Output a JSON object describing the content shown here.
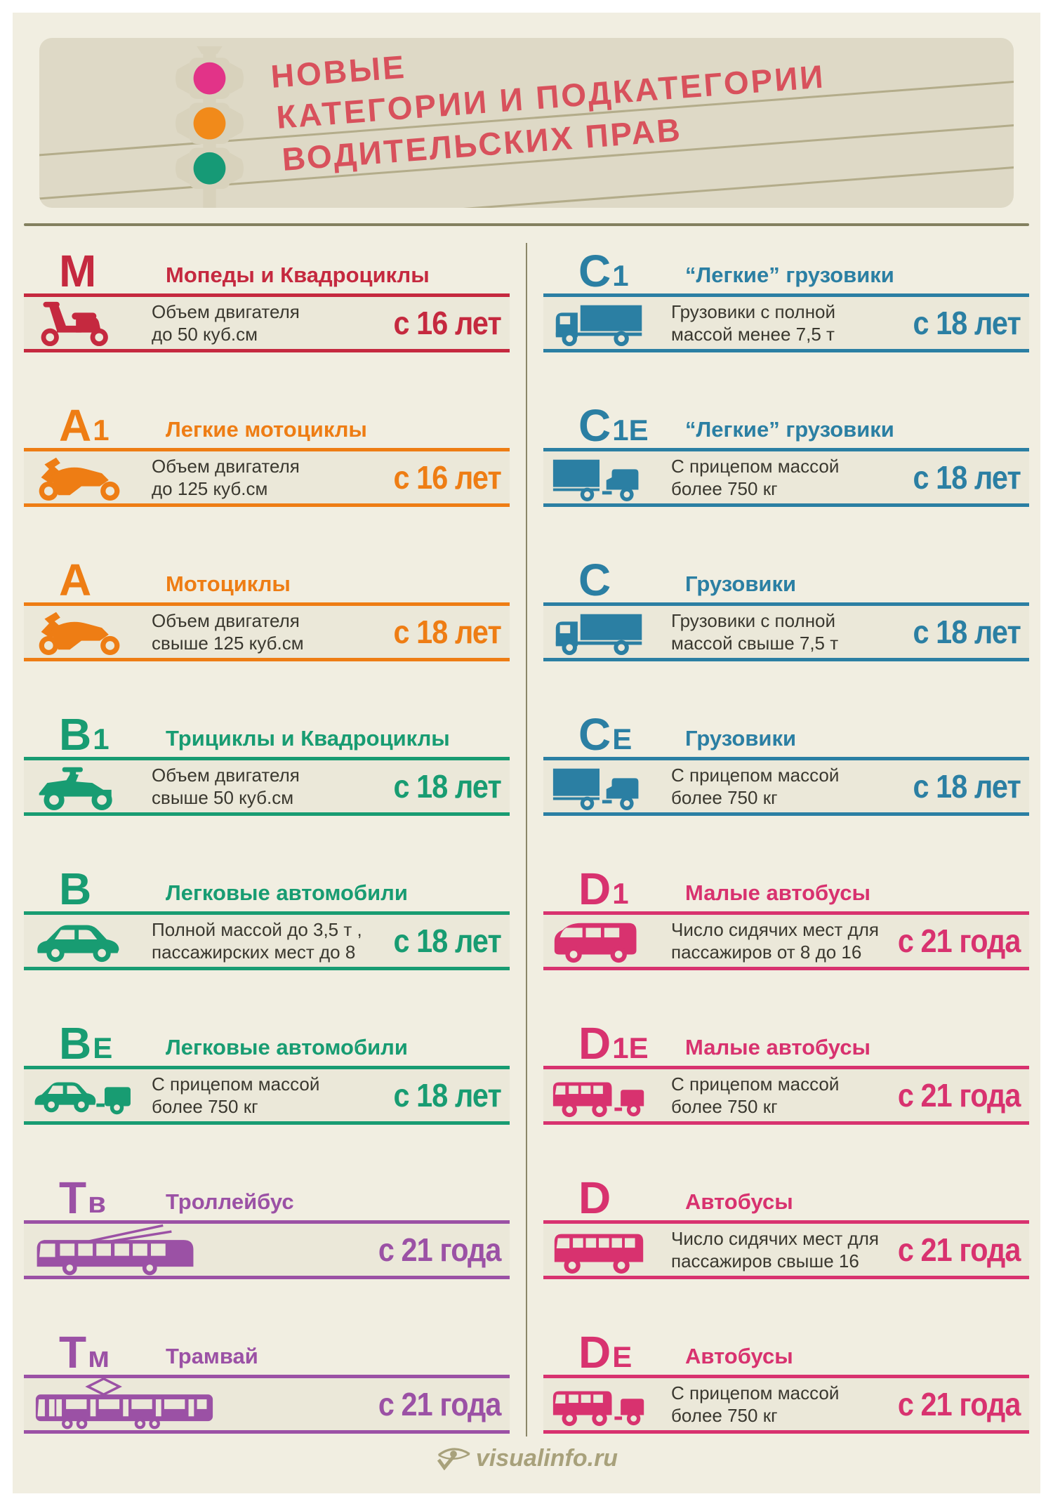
{
  "header": {
    "title_lines": [
      "Новые",
      "категории и подкатегории",
      "водительских прав"
    ]
  },
  "traffic_light": {
    "lights": [
      "#e23388",
      "#f18a1a",
      "#169a76"
    ]
  },
  "footer": {
    "site": "visualinfo.ru"
  },
  "colors": {
    "page_bg": "#f1eee1",
    "header_bg": "#ded9c6",
    "band_bg": "#ebe8d9",
    "rule_olive": "#83805f",
    "wire_olive": "#b3ac8a",
    "desc_text": "#3a382f",
    "header_title_red": "#d8515c",
    "footer_olive": "#a8a17b",
    "category_red": "#c5293f",
    "category_orange": "#ee7d14",
    "category_green": "#189c72",
    "category_purple": "#9b51a5",
    "category_blue": "#2b7fa3",
    "category_pink": "#d8326f"
  },
  "columns": {
    "left": [
      {
        "code": {
          "main": "M",
          "sub": ""
        },
        "title": "Мопеды и Квадроциклы",
        "desc_lines": [
          "Объем двигателя",
          "до 50 куб.см"
        ],
        "age": "с 16 лет",
        "color": "#c5293f",
        "icon": "scooter-icon",
        "wide": false
      },
      {
        "code": {
          "main": "A",
          "sub": "1"
        },
        "title": "Легкие мотоциклы",
        "desc_lines": [
          "Объем двигателя",
          "до 125 куб.см"
        ],
        "age": "с 16 лет",
        "color": "#ee7d14",
        "icon": "motorcycle-icon",
        "wide": false
      },
      {
        "code": {
          "main": "A",
          "sub": ""
        },
        "title": "Мотоциклы",
        "desc_lines": [
          "Объем двигателя",
          "свыше 125 куб.см"
        ],
        "age": "с 18 лет",
        "color": "#ee7d14",
        "icon": "motorcycle-icon",
        "wide": false
      },
      {
        "code": {
          "main": "B",
          "sub": "1"
        },
        "title": "Трициклы и Квадроциклы",
        "desc_lines": [
          "Объем двигателя",
          "свыше 50 куб.см"
        ],
        "age": "с 18 лет",
        "color": "#189c72",
        "icon": "quad-icon",
        "wide": false
      },
      {
        "code": {
          "main": "B",
          "sub": ""
        },
        "title": "Легковые автомобили",
        "desc_lines": [
          "Полной массой до 3,5 т ,",
          "пассажирских мест до 8"
        ],
        "age": "с 18 лет",
        "color": "#189c72",
        "icon": "car-icon",
        "wide": false
      },
      {
        "code": {
          "main": "B",
          "sub": "E"
        },
        "title": "Легковые автомобили",
        "desc_lines": [
          "С прицепом массой",
          "более 750 кг"
        ],
        "age": "с 18 лет",
        "color": "#189c72",
        "icon": "car-trailer-icon",
        "wide": false
      },
      {
        "code": {
          "main": "T",
          "sub": "в"
        },
        "title": "Троллейбус",
        "desc_lines": [],
        "age": "с 21 года",
        "color": "#9b51a5",
        "icon": "trolleybus-icon",
        "wide": true
      },
      {
        "code": {
          "main": "T",
          "sub": "м"
        },
        "title": "Трамвай",
        "desc_lines": [],
        "age": "с 21 года",
        "color": "#9b51a5",
        "icon": "tram-icon",
        "wide": true
      }
    ],
    "right": [
      {
        "code": {
          "main": "C",
          "sub": "1"
        },
        "title": "“Легкие” грузовики",
        "desc_lines": [
          "Грузовики с полной",
          "массой менее 7,5 т"
        ],
        "age": "с 18 лет",
        "color": "#2b7fa3",
        "icon": "truck-icon",
        "wide": false
      },
      {
        "code": {
          "main": "C",
          "sub": "1E"
        },
        "title": "“Легкие” грузовики",
        "desc_lines": [
          "С прицепом массой",
          "более 750 кг"
        ],
        "age": "с 18 лет",
        "color": "#2b7fa3",
        "icon": "truck-trailer-icon",
        "wide": false
      },
      {
        "code": {
          "main": "C",
          "sub": ""
        },
        "title": "Грузовики",
        "desc_lines": [
          "Грузовики с полной",
          "массой свыше 7,5 т"
        ],
        "age": "с 18 лет",
        "color": "#2b7fa3",
        "icon": "truck-icon",
        "wide": false
      },
      {
        "code": {
          "main": "C",
          "sub": "E"
        },
        "title": "Грузовики",
        "desc_lines": [
          "С прицепом массой",
          "более 750 кг"
        ],
        "age": "с 18 лет",
        "color": "#2b7fa3",
        "icon": "truck-trailer-icon",
        "wide": false
      },
      {
        "code": {
          "main": "D",
          "sub": "1"
        },
        "title": "Малые автобусы",
        "desc_lines": [
          "Число сидячих мест для",
          "пассажиров от 8 до 16"
        ],
        "age": "с 21 года",
        "color": "#d8326f",
        "icon": "minibus-icon",
        "wide": false
      },
      {
        "code": {
          "main": "D",
          "sub": "1E"
        },
        "title": "Малые автобусы",
        "desc_lines": [
          "С прицепом массой",
          "более 750 кг"
        ],
        "age": "с 21 года",
        "color": "#d8326f",
        "icon": "minibus-trailer-icon",
        "wide": false
      },
      {
        "code": {
          "main": "D",
          "sub": ""
        },
        "title": "Автобусы",
        "desc_lines": [
          "Число сидячих мест для",
          "пассажиров свыше 16"
        ],
        "age": "с 21 года",
        "color": "#d8326f",
        "icon": "bus-icon",
        "wide": false
      },
      {
        "code": {
          "main": "D",
          "sub": "E"
        },
        "title": "Автобусы",
        "desc_lines": [
          "С прицепом массой",
          "более 750 кг"
        ],
        "age": "с 21 года",
        "color": "#d8326f",
        "icon": "bus-trailer-icon",
        "wide": false
      }
    ]
  }
}
